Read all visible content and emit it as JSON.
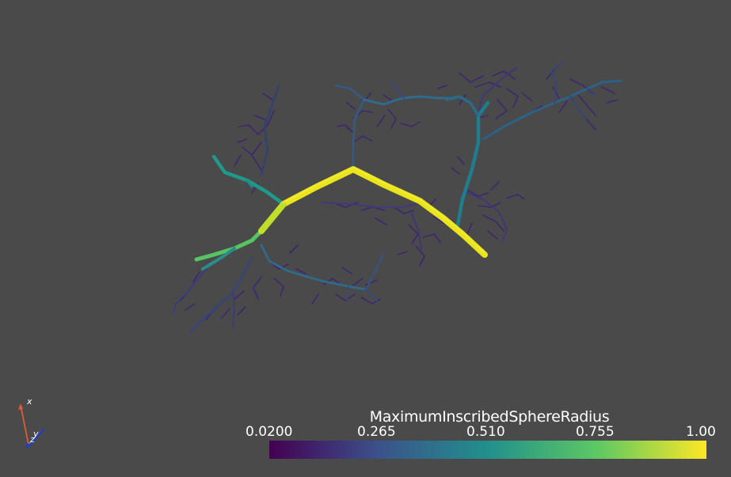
{
  "scalar_bar": {
    "title": "MaximumInscribedSphereRadius",
    "ticks": [
      "0.0200",
      "0.265",
      "0.510",
      "0.755",
      "1.00"
    ],
    "range": [
      0.02,
      1.0
    ],
    "colormap": "viridis",
    "colors": [
      "#440154",
      "#3b528b",
      "#21908c",
      "#5dc863",
      "#fde725"
    ]
  },
  "axes": {
    "x_label": "x",
    "y_label": "y",
    "z_label": "z",
    "x_color": "#e05a3a",
    "y_color": "#e0c040",
    "z_color": "#2040c0"
  },
  "background_color": "#4a4a4a"
}
